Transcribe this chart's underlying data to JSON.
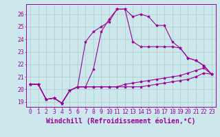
{
  "xlabel": "Windchill (Refroidissement éolien,°C)",
  "background_color": "#cce8ec",
  "line_color": "#990099",
  "xlim": [
    -0.5,
    23.5
  ],
  "ylim": [
    18.6,
    26.8
  ],
  "yticks": [
    19,
    20,
    21,
    22,
    23,
    24,
    25,
    26
  ],
  "xticks": [
    0,
    1,
    2,
    3,
    4,
    5,
    6,
    7,
    8,
    9,
    10,
    11,
    12,
    13,
    14,
    15,
    16,
    17,
    18,
    19,
    20,
    21,
    22,
    23
  ],
  "series": [
    [
      20.4,
      20.4,
      19.2,
      19.3,
      18.9,
      19.9,
      20.2,
      20.2,
      21.6,
      24.6,
      25.6,
      26.4,
      26.4,
      25.8,
      26.0,
      25.8,
      25.1,
      25.1,
      23.8,
      23.3,
      22.5,
      22.3,
      21.9,
      21.2
    ],
    [
      20.4,
      20.4,
      19.2,
      19.3,
      18.9,
      19.9,
      20.2,
      23.8,
      24.6,
      25.0,
      25.4,
      26.4,
      26.4,
      23.8,
      23.4,
      23.4,
      23.4,
      23.4,
      23.4,
      23.3,
      22.5,
      22.3,
      21.9,
      21.2
    ],
    [
      20.4,
      20.4,
      19.2,
      19.3,
      18.9,
      19.9,
      20.2,
      20.2,
      20.2,
      20.2,
      20.2,
      20.2,
      20.4,
      20.5,
      20.6,
      20.7,
      20.8,
      20.9,
      21.0,
      21.1,
      21.3,
      21.5,
      21.7,
      21.2
    ],
    [
      20.4,
      20.4,
      19.2,
      19.3,
      18.9,
      19.9,
      20.2,
      20.2,
      20.2,
      20.2,
      20.2,
      20.2,
      20.2,
      20.2,
      20.2,
      20.3,
      20.4,
      20.5,
      20.6,
      20.7,
      20.8,
      21.0,
      21.3,
      21.2
    ]
  ],
  "grid_color": "#aacccc",
  "tick_fontsize": 5.8,
  "xlabel_fontsize": 7.0
}
